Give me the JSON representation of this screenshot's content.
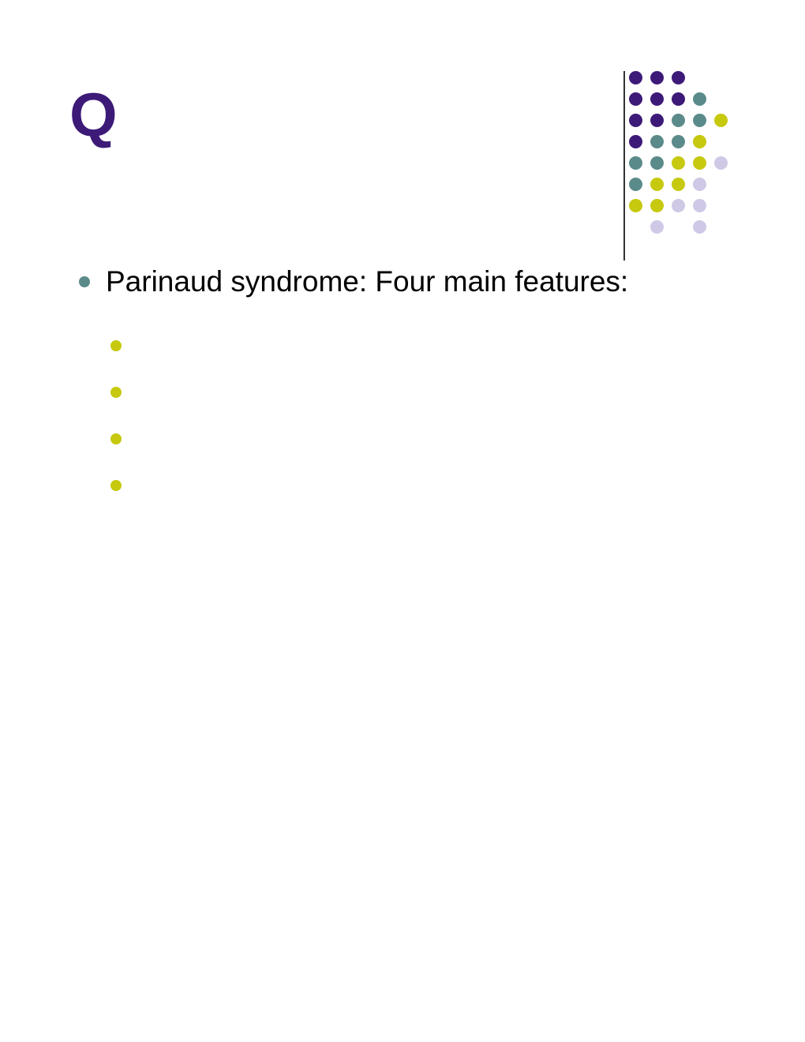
{
  "title": "Q",
  "main_bullet": {
    "text": "Parinaud syndrome: Four main features:",
    "marker_color": "#5b8a8a",
    "font_size": 37,
    "text_color": "#000000"
  },
  "sub_bullets": {
    "count": 4,
    "marker_color": "#c6c90e"
  },
  "colors": {
    "title": "#3d1a78",
    "background": "#ffffff",
    "purple": "#3d1a78",
    "teal": "#5b8a8a",
    "olive": "#c6c90e",
    "lavender": "#cfc9e6"
  },
  "decorative_pattern": {
    "rows": [
      [
        "purple",
        "purple",
        "purple",
        "none",
        "none"
      ],
      [
        "purple",
        "purple",
        "purple",
        "teal",
        "none"
      ],
      [
        "purple",
        "purple",
        "teal",
        "teal",
        "olive"
      ],
      [
        "purple",
        "teal",
        "teal",
        "olive",
        "none"
      ],
      [
        "teal",
        "teal",
        "olive",
        "olive",
        "lavender"
      ],
      [
        "teal",
        "olive",
        "olive",
        "lavender",
        "none"
      ],
      [
        "olive",
        "olive",
        "lavender",
        "lavender",
        "none"
      ],
      [
        "none",
        "lavender",
        "none",
        "lavender",
        "none"
      ]
    ],
    "dot_size": 17,
    "gap": 10
  }
}
